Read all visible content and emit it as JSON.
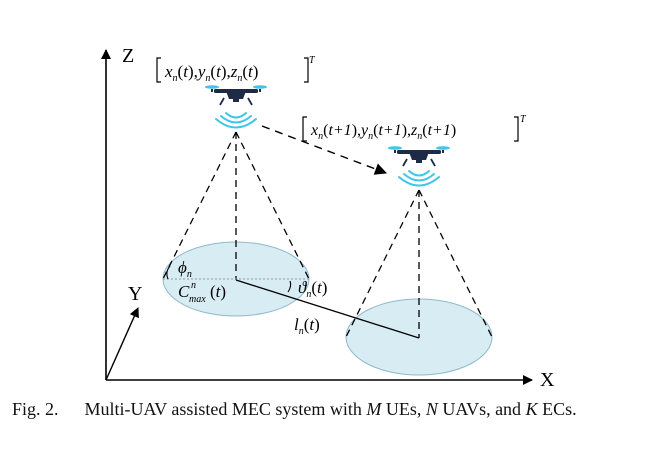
{
  "axes": {
    "z_label": "Z",
    "x_label": "X",
    "y_label": "Y"
  },
  "uav_positions": {
    "t": {
      "x": "x",
      "y": "y",
      "z": "z",
      "sub": "n",
      "arg": "t",
      "sup": "T"
    },
    "t_plus_1": {
      "x": "x",
      "y": "y",
      "z": "z",
      "sub": "n",
      "arg": "t+1",
      "sup": "T"
    }
  },
  "symbols": {
    "phi": "ϕ",
    "phi_sub": "n",
    "coverage": "C",
    "coverage_sup": "n",
    "coverage_sub": "max",
    "coverage_arg": "t",
    "theta": "ϑ",
    "theta_sub": "n",
    "theta_arg": "t",
    "distance": "l",
    "distance_sub": "n",
    "distance_arg": "t"
  },
  "caption": {
    "label": "Fig. 2.",
    "text_a": "Multi-UAV assisted MEC system with ",
    "M": "M",
    "text_b": " UEs, ",
    "N": "N",
    "text_c": " UAVs, and ",
    "K": "K",
    "text_d": " ECs."
  },
  "colors": {
    "uav_body": "#1d2b46",
    "signal": "#3ec6e6",
    "coverage_fill": "#d8ecf4",
    "coverage_stroke": "#8fb9cc"
  }
}
